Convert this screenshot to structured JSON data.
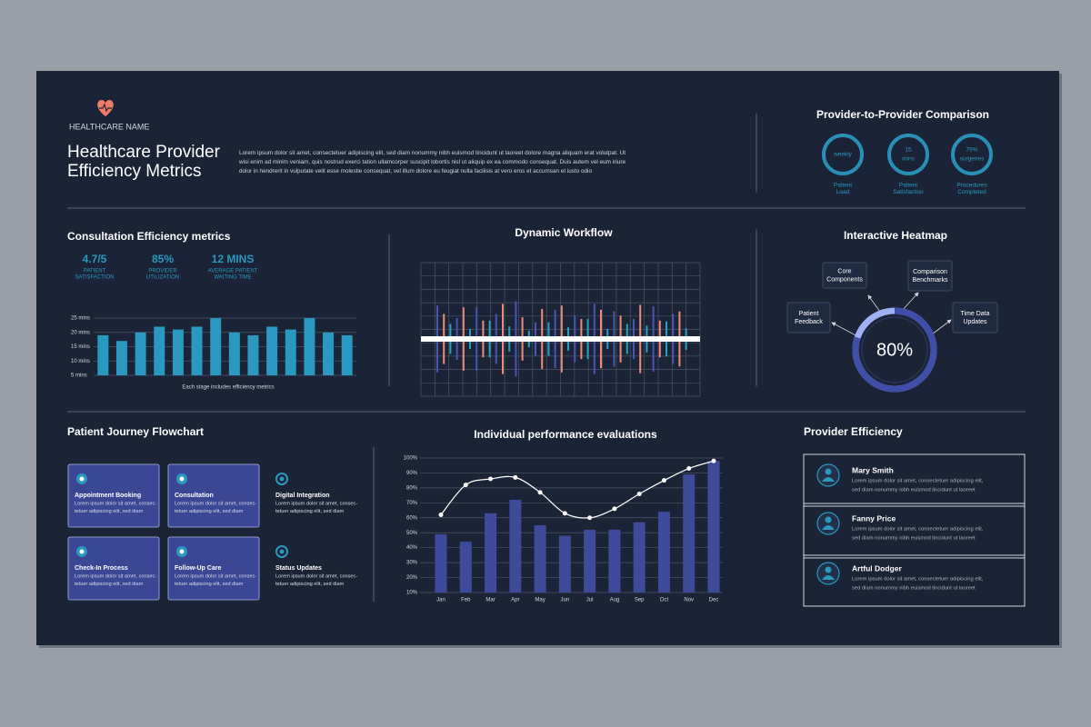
{
  "header": {
    "brand": "HEALTHCARE NAME",
    "title": [
      "Healthcare Provider",
      "Efficiency Metrics"
    ],
    "paragraph": [
      "Lorem ipsum dolor sit amet, consectetuer adipiscing elit, sed diam nonummy nibh euismod tincidunt ut laoreet dolore magna aliquam erat volutpat. Ut",
      "wisi enim ad minim veniam, quis nostrud exerci tation ullamcorper suscipit lobortis nisl ut aliquip ex ea commodo consequat. Duis autem vel eum iriure",
      "dolor in hendrerit in vulputate velit esse molestie consequat, vel illum dolore eu feugiat nulla facilisis at vero eros et accumsan et iusto odio"
    ]
  },
  "comparison": {
    "title": "Provider-to-Provider Comparison",
    "items": [
      {
        "value": [
          "weekly"
        ],
        "label": [
          "Patient",
          "Load"
        ]
      },
      {
        "value": [
          "15",
          "mins"
        ],
        "label": [
          "Patient",
          "Satisfaction"
        ]
      },
      {
        "value": [
          "79%",
          "surgeries"
        ],
        "label": [
          "Procedures",
          "Completed"
        ]
      }
    ]
  },
  "consultation": {
    "title": "Consultation Efficiency metrics",
    "stats": [
      {
        "value": "4.7/5",
        "label": [
          "PATIENT",
          "SATISFACTION"
        ]
      },
      {
        "value": "85%",
        "label": [
          "PROVIDER",
          "UTILIZATION"
        ]
      },
      {
        "value": "12 MINS",
        "label": [
          "AVERAGE PATIENT",
          "WAITING TIME"
        ]
      }
    ]
  },
  "chart_data": [
    {
      "type": "bar",
      "caption": "Each stage includes efficiency metrics",
      "values": [
        19,
        17,
        20,
        22,
        21,
        22,
        25,
        20,
        19,
        22,
        21,
        25,
        20,
        19
      ],
      "color": "#2a98bf",
      "ylim": [
        5,
        25
      ],
      "yticks": [
        {
          "value": 25,
          "label": "25 mins"
        },
        {
          "value": 20,
          "label": "20 mins"
        },
        {
          "value": 15,
          "label": "15 mins"
        },
        {
          "value": 10,
          "label": "10 mins"
        },
        {
          "value": 5,
          "label": "5 mins"
        }
      ],
      "grid": true
    },
    {
      "type": "waveform",
      "title": "Dynamic Workflow",
      "ylim": [
        0,
        80
      ],
      "series": [
        {
          "color": "#4a55b0",
          "values": [
            40,
            25,
            38,
            30,
            45,
            20,
            35,
            28,
            42,
            33,
            24,
            39,
            30
          ]
        },
        {
          "color": "#f08b7a",
          "values": [
            30,
            38,
            22,
            42,
            26,
            36,
            40,
            24,
            35,
            28,
            41,
            22,
            33
          ]
        },
        {
          "color": "#2a9fc4",
          "values": [
            18,
            12,
            22,
            15,
            10,
            20,
            14,
            24,
            12,
            18,
            16,
            21,
            13
          ]
        }
      ]
    },
    {
      "type": "donut",
      "title": "Interactive Heatmap",
      "values": [
        80
      ],
      "value_labels": [
        "80%"
      ],
      "ylim": [
        0,
        100
      ],
      "color": "#3f4ea8",
      "nodes": [
        {
          "label": [
            "Core",
            "Components"
          ]
        },
        {
          "label": [
            "Comparison",
            "Benchmarks"
          ]
        },
        {
          "label": [
            "Patient",
            "Feedback"
          ]
        },
        {
          "label": [
            "Time Data",
            "Updates"
          ]
        }
      ]
    },
    {
      "type": "bar_line",
      "title": "Individual performance evaluations",
      "categories": [
        "Jan",
        "Feb",
        "Mar",
        "Apr",
        "May",
        "Jun",
        "Jul",
        "Aug",
        "Sep",
        "Oct",
        "Nov",
        "Dec"
      ],
      "series": [
        {
          "color": "#3d4b9a",
          "values": [
            49,
            44,
            63,
            72,
            55,
            48,
            52,
            52,
            57,
            64,
            89,
            98
          ]
        },
        {
          "color": "#ffffff",
          "values": [
            62,
            82,
            86,
            87,
            77,
            63,
            60,
            66,
            76,
            85,
            93,
            98
          ]
        }
      ],
      "ylim": [
        10,
        100
      ],
      "yticks": [
        {
          "value": 100,
          "label": "100%"
        },
        {
          "value": 90,
          "label": "90%"
        },
        {
          "value": 80,
          "label": "80%"
        },
        {
          "value": 70,
          "label": "70%"
        },
        {
          "value": 60,
          "label": "60%"
        },
        {
          "value": 50,
          "label": "50%"
        },
        {
          "value": 40,
          "label": "40%"
        },
        {
          "value": 30,
          "label": "30%"
        },
        {
          "value": 20,
          "label": "20%"
        },
        {
          "value": 10,
          "label": "10%"
        }
      ],
      "grid": true
    }
  ],
  "flowchart": {
    "title": "Patient Journey Flowchart",
    "steps": [
      {
        "title": "Appointment Booking",
        "desc": [
          "Lorem ipsum dolor sit amet, consec-",
          "tetuer adipiscing elit, sed diam"
        ]
      },
      {
        "title": "Consultation",
        "desc": [
          "Lorem ipsum dolor sit amet, consec-",
          "tetuer adipiscing elit, sed diam"
        ]
      },
      {
        "title": "Digital Integration",
        "desc": [
          "Lorem ipsum dolor sit amet, consec-",
          "tetuer adipiscing elit, sed diam"
        ]
      },
      {
        "title": "Check-In Process",
        "desc": [
          "Lorem ipsum dolor sit amet, consec-",
          "tetuer adipiscing elit, sed diam"
        ]
      },
      {
        "title": "Follow-Up Care",
        "desc": [
          "Lorem ipsum dolor sit amet, consec-",
          "tetuer adipiscing elit, sed diam"
        ]
      },
      {
        "title": "Status Updates",
        "desc": [
          "Lorem ipsum dolor sit amet, consec-",
          "tetuer adipiscing elit, sed diam"
        ]
      }
    ]
  },
  "providers": {
    "title": "Provider Efficiency",
    "people": [
      {
        "name": "Mary Smith",
        "desc": [
          "Lorem ipsum dolor sit amet, consectetuer adipiscing elit,",
          "sed diam nonummy nibh euismod tincidunt ut laoreet"
        ]
      },
      {
        "name": "Fanny Price",
        "desc": [
          "Lorem ipsum dolor sit amet, consectetuer adipiscing elit,",
          "sed diam nonummy nibh euismod tincidunt ut laoreet"
        ]
      },
      {
        "name": "Artful Dodger",
        "desc": [
          "Lorem ipsum dolor sit amet, consectetuer adipiscing elit,",
          "sed diam nonummy nibh euismod tincidunt ut laoreet"
        ]
      }
    ]
  }
}
